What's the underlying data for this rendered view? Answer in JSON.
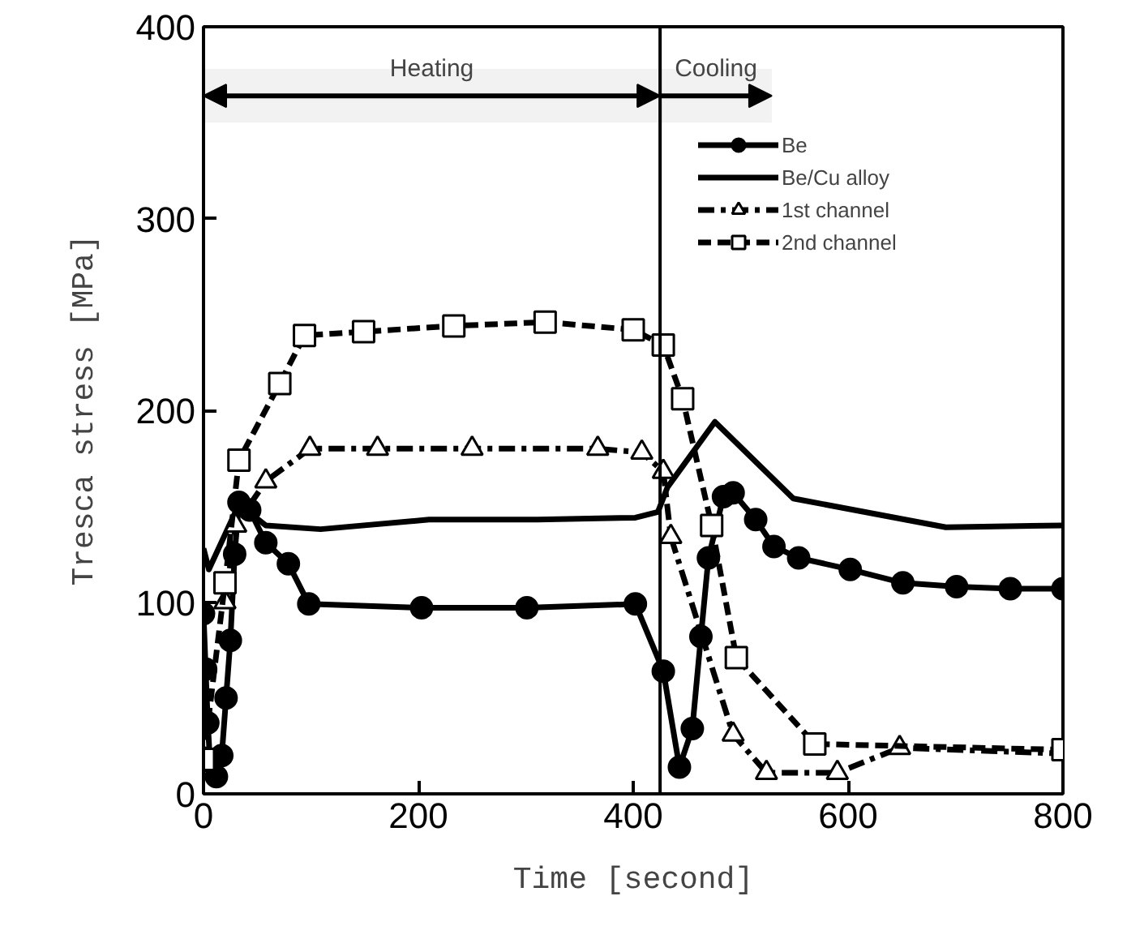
{
  "chart_data": {
    "type": "line",
    "xlabel": "Time [second]",
    "ylabel": "Tresca stress [MPa]",
    "xlim": [
      0,
      800
    ],
    "ylim": [
      0,
      400
    ],
    "xticks": [
      0,
      200,
      400,
      600,
      800
    ],
    "yticks": [
      0,
      100,
      200,
      300,
      400
    ],
    "grid": false,
    "legend": "top right",
    "ref_lines": [
      {
        "axis": "x",
        "value": 425,
        "label": null
      }
    ],
    "bands": [
      {
        "axis": "x",
        "from": 0,
        "to": 425,
        "label": "Heating",
        "color": "#f2f2f2"
      },
      {
        "axis": "x",
        "from": 425,
        "to": 529,
        "label": "Cooling",
        "color": "#f2f2f2"
      }
    ],
    "series": [
      {
        "name": "Be",
        "color": "#000000",
        "marker": "circle",
        "line_style": "solid",
        "x": [
          0,
          2,
          4,
          6,
          12,
          17,
          21,
          25,
          29,
          33,
          43,
          58,
          79,
          98,
          203,
          301,
          402,
          428,
          443,
          455,
          463,
          470,
          484,
          493,
          514,
          531,
          554,
          602,
          651,
          701,
          751,
          800
        ],
        "values": [
          94,
          65,
          37,
          17,
          9,
          20,
          50,
          80,
          125,
          152,
          148,
          131,
          120,
          99,
          97,
          97,
          99,
          64,
          14,
          34,
          82,
          123,
          155,
          157,
          143,
          129,
          123,
          117,
          110,
          108,
          107,
          107
        ]
      },
      {
        "name": "Be/Cu alloy",
        "color": "#000000",
        "marker": "none",
        "line_style": "solid",
        "x": [
          0,
          5,
          33,
          58,
          109,
          210,
          311,
          402,
          423,
          432,
          476,
          549,
          691,
          800
        ],
        "values": [
          128,
          117,
          151,
          140,
          138,
          143,
          143,
          144,
          147,
          160,
          194,
          154,
          139,
          140
        ]
      },
      {
        "name": "1st channel",
        "color": "#000000",
        "marker": "triangle",
        "line_style": "dashdot",
        "x": [
          20,
          30,
          58,
          99,
          162,
          250,
          367,
          408,
          428,
          435,
          493,
          524,
          590,
          648,
          800
        ],
        "values": [
          100,
          140,
          163,
          180,
          180,
          180,
          180,
          178,
          168,
          134,
          31,
          11,
          11,
          24,
          21
        ]
      },
      {
        "name": "2nd channel",
        "color": "#000000",
        "marker": "square",
        "line_style": "dashed",
        "x": [
          0,
          20,
          33,
          71,
          94,
          149,
          233,
          318,
          400,
          428,
          446,
          473,
          496,
          569,
          800
        ],
        "values": [
          18,
          110,
          174,
          214,
          239,
          241,
          244,
          246,
          242,
          234,
          206,
          140,
          71,
          26,
          23
        ]
      }
    ]
  }
}
